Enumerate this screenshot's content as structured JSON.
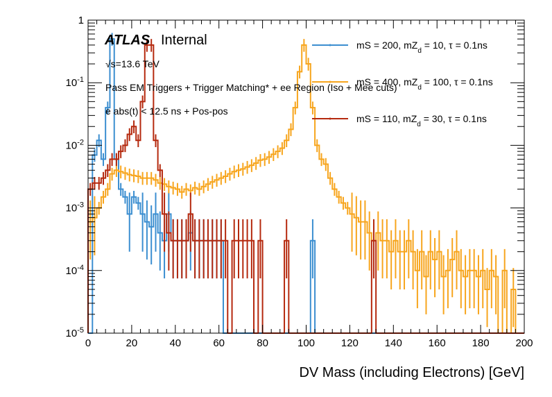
{
  "chart_data": {
    "type": "line",
    "subtype": "step-histogram",
    "title": "",
    "xlabel": "DV Mass (including Electrons) [GeV]",
    "ylabel": "",
    "xlim": [
      0,
      200
    ],
    "ylim": [
      1e-05,
      1
    ],
    "yscale": "log",
    "grid": false,
    "bin_width": 2,
    "x_ticks": [
      0,
      20,
      40,
      60,
      80,
      100,
      120,
      140,
      160,
      180,
      200
    ],
    "y_ticks": [
      {
        "value": 1e-05,
        "base": "10",
        "exp": "-5"
      },
      {
        "value": 0.0001,
        "base": "10",
        "exp": "-4"
      },
      {
        "value": 0.001,
        "base": "10",
        "exp": "-3"
      },
      {
        "value": 0.01,
        "base": "10",
        "exp": "-2"
      },
      {
        "value": 0.1,
        "base": "10",
        "exp": "-1"
      },
      {
        "value": 1,
        "base": "1",
        "exp": ""
      }
    ],
    "annotations": {
      "atlas": "ATLAS",
      "internal": "Internal",
      "energy": "√s=13.6 TeV",
      "selection": "Pass EM Triggers + Trigger Matching* + ee Region (Iso + Mee cuts)",
      "timing": "e abs(t) < 12.5 ns + Pos-pos"
    },
    "legend_position": "top-right",
    "series": [
      {
        "name": "mS = 200, mZd = 10, τ = 0.1ns",
        "legend_main": "mS = 200, mZ",
        "legend_sub": "d",
        "legend_rest": " = 10, τ = 0.1ns",
        "color": "#3b8ed0",
        "x_bins_start": 0,
        "values": [
          0,
          0.007,
          0.012,
          0.006,
          0.04,
          0.5,
          0.006,
          0.002,
          0.0015,
          0.0008,
          0.0015,
          0.0012,
          0.0008,
          0.0006,
          0.0005,
          0.0008,
          0.0004,
          0.0003,
          0.0008,
          0.0003,
          0.0003,
          0.0003,
          0.0003,
          0.0004,
          0.0003,
          0.0003,
          0.0003,
          0.0003,
          0.0003,
          0.0003,
          0.0003,
          0,
          0,
          0,
          0,
          0,
          0,
          0,
          0,
          0,
          0,
          0,
          0,
          0,
          0,
          0,
          0,
          0,
          0,
          0,
          0,
          0.0003,
          0,
          0,
          0,
          0,
          0,
          0,
          0,
          0,
          0,
          0,
          0,
          0,
          0,
          0,
          0,
          0,
          0,
          0,
          0,
          0,
          0,
          0,
          0,
          0,
          0,
          0,
          0,
          0,
          0,
          0,
          0,
          0,
          0,
          0,
          0,
          0,
          0,
          0,
          0,
          0,
          0,
          0,
          0,
          0,
          0,
          0,
          0,
          0
        ]
      },
      {
        "name": "mS = 400, mZd = 100, τ = 0.1ns",
        "legend_main": "mS = 400, mZ",
        "legend_sub": "d",
        "legend_rest": " = 100, τ = 0.1ns",
        "color": "#f7a51d",
        "x_bins_start": 0,
        "values": [
          0.0006,
          0.0007,
          0.001,
          0.0015,
          0.002,
          0.0035,
          0.004,
          0.0038,
          0.0036,
          0.0034,
          0.0033,
          0.0032,
          0.003,
          0.003,
          0.003,
          0.0028,
          0.0025,
          0.0024,
          0.0022,
          0.0021,
          0.002,
          0.0018,
          0.002,
          0.0019,
          0.0021,
          0.002,
          0.0022,
          0.0024,
          0.0026,
          0.0028,
          0.003,
          0.0032,
          0.0035,
          0.0038,
          0.004,
          0.0042,
          0.0045,
          0.0048,
          0.0052,
          0.0058,
          0.006,
          0.0065,
          0.0072,
          0.008,
          0.009,
          0.012,
          0.018,
          0.04,
          0.15,
          0.4,
          0.2,
          0.04,
          0.01,
          0.006,
          0.005,
          0.003,
          0.002,
          0.0015,
          0.0012,
          0.001,
          0.0008,
          0.0007,
          0.0006,
          0.0006,
          0.0004,
          0.0003,
          0.0004,
          0.0003,
          0.0003,
          0.0002,
          0.0003,
          0.0002,
          0.0002,
          0.0003,
          0.0002,
          0.0001,
          0.0002,
          8e-05,
          0.0002,
          0.00015,
          0.0002,
          8e-05,
          0.0001,
          0.00015,
          0.0002,
          0.0001,
          8e-05,
          0.0001,
          0.0001,
          8e-05,
          0.0001,
          5e-05,
          0.0001,
          8e-05,
          0,
          0.0001,
          0,
          5e-05,
          0,
          0
        ]
      },
      {
        "name": "mS = 110, mZd = 30, τ = 0.1ns",
        "legend_main": "mS = 110, mZ",
        "legend_sub": "d",
        "legend_rest": " = 30, τ = 0.1ns",
        "color": "#b5290e",
        "x_bins_start": 0,
        "values": [
          0.002,
          0.0025,
          0.0025,
          0.003,
          0.004,
          0.006,
          0.006,
          0.008,
          0.01,
          0.015,
          0.02,
          0.012,
          0.05,
          0.4,
          0.4,
          0.012,
          0.004,
          0.0008,
          0.0004,
          0.0003,
          0.0003,
          0.0003,
          0.0003,
          0.0008,
          0.0003,
          0.0003,
          0.0003,
          0.0003,
          0.0003,
          0.0003,
          0.0003,
          0.0003,
          0,
          0.0003,
          0.0003,
          0.0003,
          0.0003,
          0.0003,
          0,
          0.0003,
          0,
          0,
          0,
          0,
          0,
          0.0003,
          0,
          0,
          0,
          0,
          0,
          0,
          0,
          0,
          0,
          0,
          0,
          0,
          0,
          0,
          0,
          0,
          0,
          0,
          0,
          0.0003,
          0,
          0,
          0,
          0,
          0,
          0,
          0,
          0,
          0,
          0,
          0,
          0,
          0,
          0,
          0,
          0,
          0,
          0,
          0,
          0,
          0,
          0,
          0,
          0,
          0,
          0,
          0,
          0,
          0,
          0,
          0,
          0,
          0,
          0
        ]
      }
    ]
  }
}
